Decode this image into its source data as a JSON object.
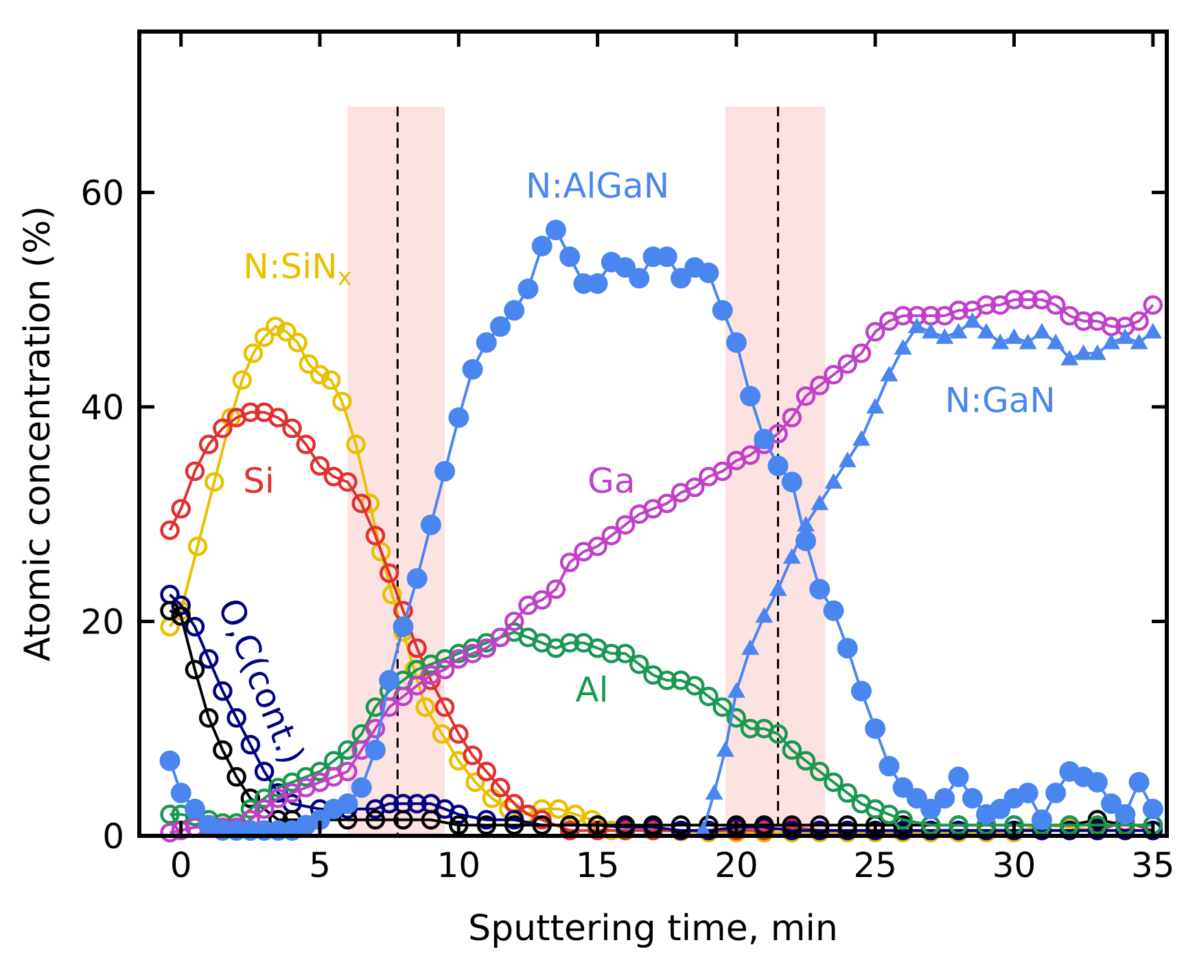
{
  "chart_data": {
    "type": "line",
    "title": "",
    "xlabel": "Sputtering time, min",
    "ylabel": "Atomic concentration (%)",
    "xlim": [
      -1.5,
      35.5
    ],
    "ylim": [
      0,
      75
    ],
    "xticks": [
      "0",
      "5",
      "10",
      "15",
      "20",
      "25",
      "30",
      "35"
    ],
    "xtick_values": [
      0,
      5,
      10,
      15,
      20,
      25,
      30,
      35
    ],
    "yticks": [
      "0",
      "20",
      "40",
      "60"
    ],
    "ytick_values": [
      0,
      20,
      40,
      60
    ],
    "grid": false,
    "interface_regions": [
      {
        "from": 6.0,
        "to": 9.5,
        "center": 7.8,
        "color": "#fde2e2"
      },
      {
        "from": 19.6,
        "to": 23.2,
        "center": 21.5,
        "color": "#fde2e2"
      }
    ],
    "annotations": [
      {
        "text": "N:SiN",
        "subscript": "x",
        "x": 4.2,
        "y": 52,
        "color": "#e8c000"
      },
      {
        "text": "Si",
        "x": 2.8,
        "y": 32,
        "color": "#e03030"
      },
      {
        "text": "O,C(cont.)",
        "x": 2.5,
        "y": 14,
        "color": "#000080",
        "rotation": 68
      },
      {
        "text": "N:AlGaN",
        "x": 15,
        "y": 59.5,
        "color": "#4a86f0"
      },
      {
        "text": "Ga",
        "x": 15.5,
        "y": 32,
        "color": "#c040c8"
      },
      {
        "text": "Al",
        "x": 14.8,
        "y": 12.5,
        "color": "#1a9850"
      },
      {
        "text": "N:GaN",
        "x": 29.5,
        "y": 39.5,
        "color": "#4a86f0"
      }
    ],
    "series": [
      {
        "name": "N:SiNx",
        "color": "#e8c000",
        "marker": "open-circle",
        "x": [
          -0.4,
          0,
          0.6,
          1.2,
          1.8,
          2.2,
          2.6,
          3,
          3.4,
          3.8,
          4.2,
          4.6,
          5,
          5.4,
          5.8,
          6.3,
          6.8,
          7.2,
          7.6,
          8,
          8.4,
          8.8,
          9.4,
          10,
          10.6,
          11.2,
          11.8,
          12.4,
          13,
          13.6,
          14.2,
          14.8,
          15.5,
          16,
          17,
          18,
          19,
          20,
          21,
          22,
          23,
          24,
          25,
          26,
          27,
          28,
          29,
          30,
          31,
          32,
          33,
          34,
          35
        ],
        "y": [
          19.5,
          21,
          27,
          33,
          39,
          42.5,
          45,
          46.5,
          47.5,
          47,
          46,
          44,
          43,
          42.5,
          40.5,
          36.5,
          31,
          26.5,
          22.5,
          19,
          15.5,
          12,
          9.5,
          7,
          5,
          3.5,
          2.5,
          2,
          2.5,
          2.5,
          2,
          1.5,
          0.5,
          0.5,
          0.5,
          0.4,
          0.3,
          0.3,
          0.3,
          0.3,
          0.3,
          0.3,
          0.3,
          0.3,
          0.3,
          0.3,
          0.3,
          0.3,
          1,
          0.8,
          0.5,
          0.5,
          0.5
        ]
      },
      {
        "name": "Si",
        "color": "#e03030",
        "marker": "open-circle",
        "x": [
          -0.4,
          0,
          0.5,
          1,
          1.5,
          2,
          2.5,
          3,
          3.5,
          4,
          4.5,
          5,
          5.5,
          6,
          6.5,
          7,
          7.5,
          8,
          8.5,
          9,
          9.5,
          10,
          10.5,
          11,
          11.5,
          12,
          12.5,
          13,
          14,
          15,
          16,
          17,
          18,
          19,
          20,
          21,
          22,
          23,
          24,
          25,
          26,
          27,
          28,
          29,
          30,
          31,
          32,
          33,
          34,
          35
        ],
        "y": [
          28.5,
          30.5,
          34,
          36.5,
          38,
          39,
          39.5,
          39.5,
          39,
          38,
          36.5,
          34.5,
          33.5,
          33,
          31,
          28,
          24.5,
          21,
          17.5,
          14.5,
          12,
          9.5,
          7.5,
          6,
          4.5,
          3,
          2,
          1.5,
          0.5,
          0.5,
          0.5,
          0.5,
          0.5,
          0.5,
          0.5,
          0.5,
          0.8,
          0.5,
          0.5,
          0.5,
          0.5,
          0.5,
          0.5,
          0.5,
          0.5,
          0.5,
          0.5,
          0.5,
          1.3,
          0.5
        ]
      },
      {
        "name": "O,C(cont.)",
        "color": "#000080",
        "marker": "open-circle",
        "x": [
          -0.4,
          0,
          0.5,
          1,
          1.5,
          2,
          2.5,
          3,
          3.5,
          4,
          5,
          6,
          7,
          7.5,
          8,
          8.5,
          9,
          9.5,
          10,
          11,
          12,
          13,
          14,
          15,
          16,
          17,
          18,
          19,
          20,
          21,
          22,
          23,
          24,
          25,
          26,
          27,
          28,
          29,
          30,
          31,
          32,
          33,
          34,
          35
        ],
        "y": [
          22.5,
          21.5,
          19.5,
          16.5,
          13.5,
          11,
          8.5,
          6,
          4,
          3,
          2.5,
          2.5,
          2.5,
          3,
          3,
          3,
          3,
          2.5,
          2,
          1.5,
          1.5,
          1,
          1,
          1,
          0.8,
          0.8,
          0.5,
          0.5,
          0.8,
          0.8,
          0.5,
          0.5,
          0.5,
          0.5,
          0.5,
          0.5,
          0.5,
          0.5,
          0.5,
          0.5,
          0.5,
          0.5,
          0.5,
          0.5
        ]
      },
      {
        "name": "O,C(cont.) black",
        "color": "#000000",
        "marker": "open-circle",
        "x": [
          -0.4,
          0,
          0.5,
          1,
          1.5,
          2,
          2.5,
          3,
          3.5,
          4,
          5,
          6,
          7,
          8,
          9,
          10,
          11,
          12,
          13,
          14,
          15,
          16,
          17,
          18,
          19,
          20,
          21,
          22,
          23,
          24,
          25,
          26,
          27,
          28,
          29,
          30,
          31,
          32,
          33,
          34,
          35
        ],
        "y": [
          21,
          20.5,
          15.5,
          11,
          8,
          5.5,
          3.5,
          2.5,
          1.5,
          1.5,
          1.5,
          1.5,
          1.5,
          1.5,
          1.5,
          1,
          1,
          1,
          1,
          1,
          1,
          1,
          1,
          1,
          1,
          1,
          1,
          1,
          1,
          1,
          1,
          1,
          1,
          1,
          1,
          1,
          1,
          1,
          1.5,
          1,
          1
        ]
      },
      {
        "name": "Al",
        "color": "#1a9850",
        "marker": "open-circle",
        "x": [
          -0.4,
          0,
          0.5,
          1,
          1.5,
          2,
          2.5,
          3,
          3.5,
          4,
          4.5,
          5,
          5.5,
          6,
          6.5,
          7,
          7.5,
          8,
          8.5,
          9,
          9.5,
          10,
          10.5,
          11,
          11.5,
          12,
          12.5,
          13,
          13.5,
          14,
          14.5,
          15,
          15.5,
          16,
          16.5,
          17,
          17.5,
          18,
          18.5,
          19,
          19.5,
          20,
          20.5,
          21,
          21.5,
          22,
          22.5,
          23,
          23.5,
          24,
          24.5,
          25,
          25.5,
          26,
          27,
          28,
          29,
          30,
          31,
          32,
          33,
          34,
          35
        ],
        "y": [
          2,
          2,
          1.8,
          1.5,
          1.2,
          1.2,
          2.5,
          3.5,
          4.5,
          5,
          5.5,
          6,
          7,
          8,
          9.5,
          12,
          13.5,
          14.5,
          15.5,
          16,
          16.5,
          17,
          17.5,
          18,
          18.5,
          19,
          18.5,
          18,
          17.5,
          18,
          18,
          17.5,
          17,
          17,
          16,
          15,
          14.5,
          14.5,
          14,
          13,
          12,
          11,
          10,
          10,
          9.5,
          8,
          7,
          6,
          5,
          4,
          3,
          2.5,
          2,
          1.5,
          1,
          1,
          1,
          1,
          1,
          1,
          1,
          1,
          1
        ]
      },
      {
        "name": "Ga",
        "color": "#c040c8",
        "marker": "open-circle",
        "x": [
          -0.4,
          0,
          0.5,
          1,
          1.5,
          2,
          2.5,
          3,
          3.5,
          4,
          4.5,
          5,
          5.5,
          6,
          6.5,
          7,
          7.5,
          8,
          8.5,
          9,
          9.5,
          10,
          10.5,
          11,
          11.5,
          12,
          12.5,
          13,
          13.5,
          14,
          14.5,
          15,
          15.5,
          16,
          16.5,
          17,
          17.5,
          18,
          18.5,
          19,
          19.5,
          20,
          20.5,
          21,
          21.5,
          22,
          22.5,
          23,
          23.5,
          24,
          24.5,
          25,
          25.5,
          26,
          26.5,
          27,
          27.5,
          28,
          28.5,
          29,
          29.5,
          30,
          30.5,
          31,
          31.5,
          32,
          32.5,
          33,
          33.5,
          34,
          34.5,
          35
        ],
        "y": [
          0.3,
          0.5,
          0.8,
          0.8,
          0.8,
          0.8,
          1.5,
          2.5,
          3.5,
          4,
          4.5,
          5,
          5.5,
          6,
          8,
          10,
          12,
          13,
          14,
          15,
          15.5,
          16.5,
          17,
          17.5,
          18.5,
          20,
          21.5,
          22,
          23,
          25.5,
          26.5,
          27,
          28,
          29,
          30,
          30.5,
          31,
          32,
          32.5,
          33.5,
          34,
          35,
          35.5,
          36.5,
          37.5,
          39,
          41,
          42,
          43,
          44,
          45,
          47,
          48,
          48.5,
          48.5,
          48.5,
          48.5,
          49,
          49,
          49.5,
          49.5,
          50,
          50,
          50,
          49.5,
          48.5,
          48,
          48,
          47.5,
          47.5,
          48,
          49.5
        ]
      },
      {
        "name": "N:AlGaN",
        "color": "#4a86f0",
        "marker": "filled-circle",
        "x": [
          -0.4,
          0,
          0.5,
          1,
          1.5,
          2,
          2.5,
          3,
          3.5,
          4,
          4.5,
          5,
          5.5,
          6,
          6.5,
          7,
          7.5,
          8,
          8.5,
          9,
          9.5,
          10,
          10.5,
          11,
          11.5,
          12,
          12.5,
          13,
          13.5,
          14,
          14.5,
          15,
          15.5,
          16,
          16.5,
          17,
          17.5,
          18,
          18.5,
          19,
          19.5,
          20,
          20.5,
          21,
          21.5,
          22,
          22.5,
          23,
          23.5,
          24,
          24.5,
          25,
          25.5,
          26,
          26.5,
          27,
          27.5,
          28,
          28.5,
          29,
          29.5,
          30,
          30.5,
          31,
          31.5,
          32,
          32.5,
          33,
          33.5,
          34,
          34.5,
          35
        ],
        "y": [
          7,
          4,
          2.5,
          1,
          0.5,
          0.5,
          0.5,
          0.5,
          0.5,
          0.5,
          1,
          1.5,
          2.5,
          3,
          4.5,
          8,
          14.5,
          19.5,
          24,
          29,
          34,
          39,
          43.5,
          46,
          47.5,
          49,
          51,
          55,
          56.5,
          54,
          51.5,
          51.5,
          53.5,
          53,
          52,
          54,
          54,
          52,
          53,
          52.5,
          49,
          46,
          41,
          37,
          34.5,
          33,
          27.5,
          23,
          21,
          17.5,
          13.5,
          10,
          6.5,
          4.5,
          3.5,
          2.5,
          3.5,
          5.5,
          3.5,
          2,
          2.5,
          3.5,
          4,
          1.5,
          4,
          6,
          5.5,
          5,
          3,
          2,
          5,
          2.5
        ]
      },
      {
        "name": "N:GaN",
        "color": "#4a86f0",
        "marker": "filled-triangle",
        "x": [
          18.8,
          19.2,
          19.6,
          20,
          20.5,
          21,
          21.5,
          22,
          22.5,
          23,
          23.5,
          24,
          24.5,
          25,
          25.5,
          26,
          26.5,
          27,
          27.5,
          28,
          28.5,
          29,
          29.5,
          30,
          30.5,
          31,
          31.5,
          32,
          32.5,
          33,
          33.5,
          34,
          34.5,
          35
        ],
        "y": [
          0.5,
          4,
          8,
          13.5,
          17.5,
          20.5,
          23,
          26,
          29,
          31,
          33,
          35,
          37,
          40,
          43,
          45.5,
          47.5,
          47,
          46.5,
          47,
          48,
          47,
          46,
          46.5,
          46,
          47,
          46,
          44.5,
          45,
          45,
          46,
          46.5,
          46,
          47
        ]
      }
    ]
  }
}
